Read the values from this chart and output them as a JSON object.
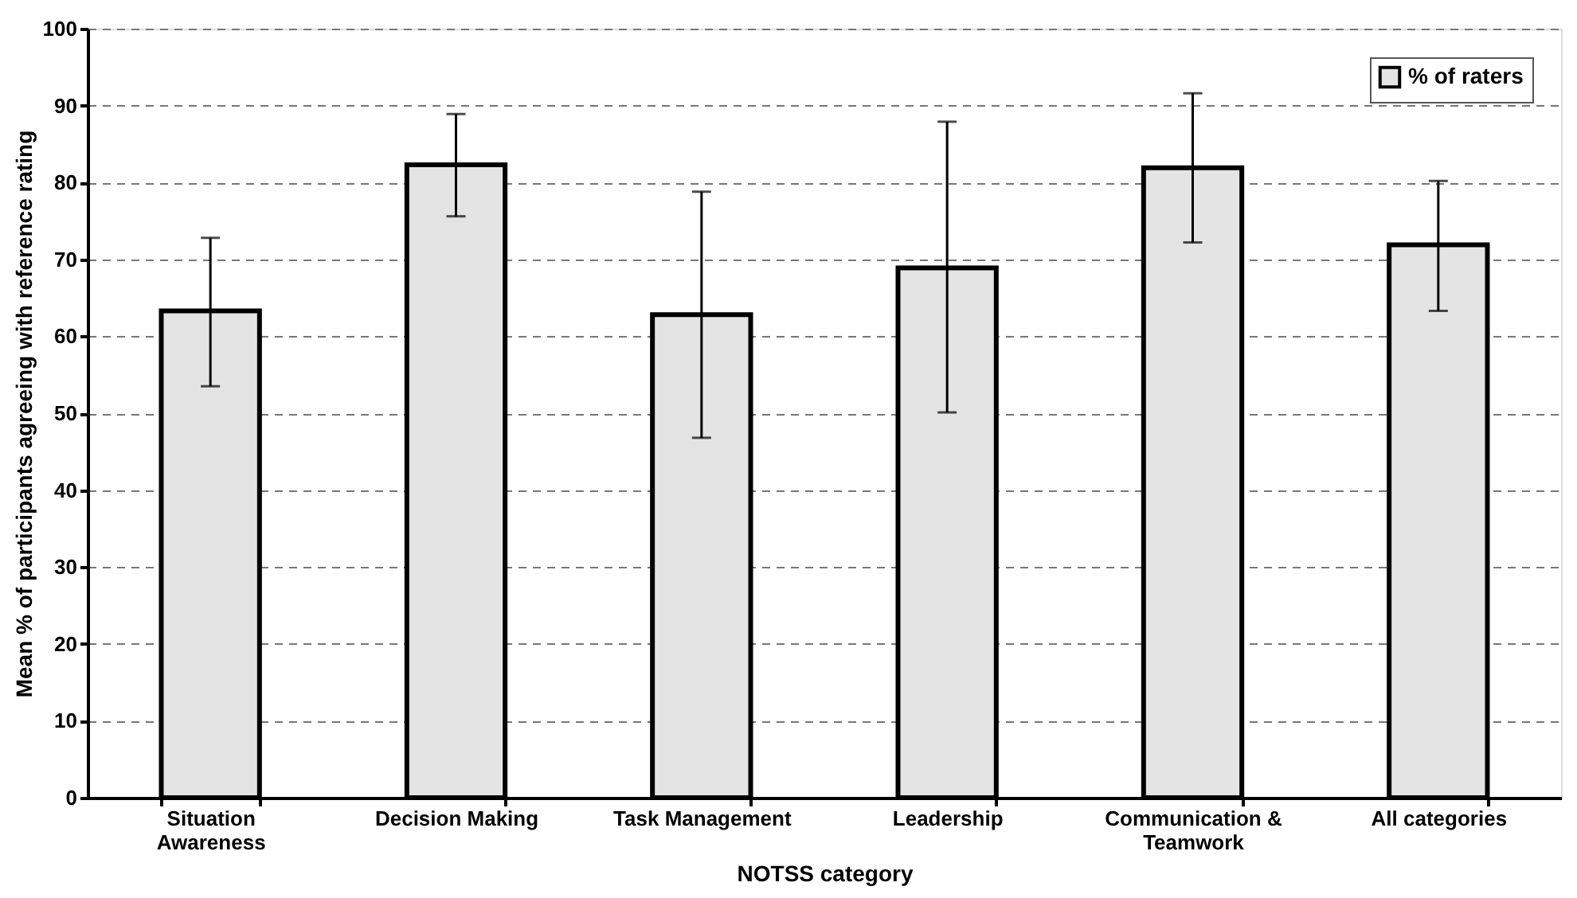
{
  "chart_data": {
    "type": "bar",
    "xlabel": "NOTSS category",
    "ylabel": "Mean % of participants agreeing with reference rating",
    "categories": [
      "Situation Awareness",
      "Decision Making",
      "Task Management",
      "Leadership",
      "Communication & Teamwork",
      "All categories"
    ],
    "series": [
      {
        "name": "% of raters",
        "color": "#e4e4e4",
        "values": [
          63.3,
          82.3,
          62.8,
          68.9,
          81.9,
          71.9
        ],
        "errors": [
          [
            53.5,
            72.8
          ],
          [
            75.6,
            88.9
          ],
          [
            46.8,
            78.8
          ],
          [
            50.1,
            87.9
          ],
          [
            72.2,
            91.6
          ],
          [
            63.3,
            80.2
          ]
        ]
      }
    ],
    "ylim": [
      0,
      100
    ],
    "yticks": [
      0,
      10,
      20,
      30,
      40,
      50,
      60,
      70,
      80,
      90,
      100
    ],
    "grid": "y",
    "legend": "top right"
  }
}
